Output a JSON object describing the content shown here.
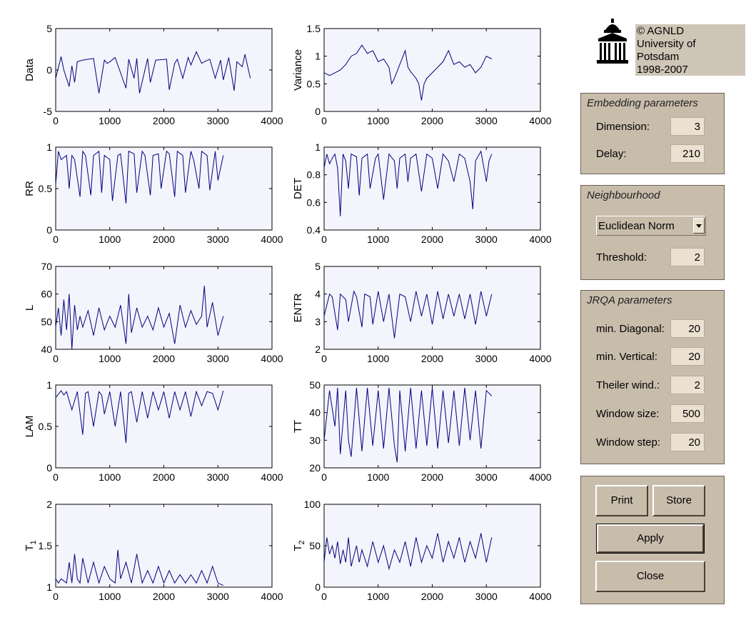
{
  "copyright": {
    "lines": [
      "© AGNLD",
      "University of",
      "Potsdam",
      "1998-2007"
    ]
  },
  "embedding": {
    "title": "Embedding parameters",
    "dimension_label": "Dimension:",
    "dimension_value": "3",
    "delay_label": "Delay:",
    "delay_value": "210"
  },
  "neighbourhood": {
    "title": "Neighbourhood",
    "norm_selected": "Euclidean Norm",
    "threshold_label": "Threshold:",
    "threshold_value": "2"
  },
  "jrqa": {
    "title": "JRQA parameters",
    "min_diagonal_label": "min. Diagonal:",
    "min_diagonal_value": "20",
    "min_vertical_label": "min. Vertical:",
    "min_vertical_value": "20",
    "theiler_label": "Theiler wind.:",
    "theiler_value": "2",
    "window_size_label": "Window size:",
    "window_size_value": "500",
    "window_step_label": "Window step:",
    "window_step_value": "20"
  },
  "buttons": {
    "print": "Print",
    "store": "Store",
    "apply": "Apply",
    "close": "Close"
  },
  "colors": {
    "plot_bg": "#f4f4fc",
    "line": "#000080",
    "panel_bg": "#c8bcab",
    "field_bg": "#ece1d1"
  },
  "chart_data": [
    {
      "type": "line",
      "ylabel": "Data",
      "xlim": [
        0,
        4000
      ],
      "ylim": [
        -5,
        5
      ],
      "xticks": [
        "0",
        "1000",
        "2000",
        "3000",
        "4000"
      ],
      "yticks": [
        "-5",
        "0",
        "5"
      ],
      "x": [
        0,
        100,
        150,
        250,
        300,
        350,
        400,
        500,
        700,
        800,
        900,
        950,
        1000,
        1100,
        1300,
        1350,
        1450,
        1500,
        1550,
        1700,
        1750,
        1850,
        2050,
        2100,
        2200,
        2250,
        2350,
        2450,
        2500,
        2600,
        2700,
        2750,
        2850,
        2950,
        3050,
        3100,
        3200,
        3300,
        3350,
        3450,
        3500,
        3600
      ],
      "y": [
        -1,
        1.6,
        0,
        -2,
        0.5,
        -1.5,
        1,
        1.2,
        1.4,
        -2.8,
        1.2,
        0.8,
        1,
        1.5,
        -2.2,
        1.3,
        -1,
        1.4,
        -2.8,
        1.4,
        -1.5,
        1.2,
        1.3,
        -2.4,
        0.8,
        1.3,
        -1,
        1.5,
        0.6,
        2.2,
        0.8,
        1,
        1.3,
        -1,
        1.2,
        -1.2,
        1.5,
        -2.5,
        1,
        0.4,
        1.9,
        -1
      ]
    },
    {
      "type": "line",
      "ylabel": "Variance",
      "xlim": [
        0,
        4000
      ],
      "ylim": [
        0,
        1.5
      ],
      "xticks": [
        "0",
        "1000",
        "2000",
        "3000",
        "4000"
      ],
      "yticks": [
        "0",
        "0.5",
        "1",
        "1.5"
      ],
      "x": [
        0,
        100,
        200,
        300,
        400,
        500,
        600,
        700,
        800,
        900,
        1000,
        1100,
        1200,
        1250,
        1300,
        1400,
        1500,
        1550,
        1600,
        1700,
        1750,
        1800,
        1850,
        1900,
        2000,
        2100,
        2200,
        2300,
        2400,
        2500,
        2600,
        2700,
        2800,
        2900,
        3000,
        3100
      ],
      "y": [
        0.7,
        0.65,
        0.7,
        0.75,
        0.85,
        1,
        1.05,
        1.2,
        1.05,
        1.1,
        0.9,
        0.95,
        0.8,
        0.5,
        0.6,
        0.85,
        1.1,
        0.8,
        0.72,
        0.6,
        0.5,
        0.2,
        0.5,
        0.6,
        0.7,
        0.8,
        0.9,
        1.1,
        0.85,
        0.9,
        0.8,
        0.85,
        0.7,
        0.8,
        1,
        0.95
      ]
    },
    {
      "type": "line",
      "ylabel": "RR",
      "xlim": [
        0,
        4000
      ],
      "ylim": [
        0,
        1
      ],
      "xticks": [
        "0",
        "1000",
        "2000",
        "3000",
        "4000"
      ],
      "yticks": [
        "0",
        "0.5",
        "1"
      ],
      "x": [
        0,
        50,
        100,
        200,
        250,
        300,
        350,
        450,
        500,
        550,
        650,
        700,
        800,
        850,
        900,
        1000,
        1050,
        1150,
        1200,
        1300,
        1350,
        1450,
        1500,
        1600,
        1650,
        1750,
        1800,
        1900,
        1950,
        2050,
        2100,
        2200,
        2250,
        2350,
        2400,
        2500,
        2550,
        2650,
        2700,
        2800,
        2850,
        2950,
        3000,
        3100
      ],
      "y": [
        0.55,
        0.95,
        0.85,
        0.9,
        0.5,
        0.9,
        0.85,
        0.4,
        0.95,
        0.9,
        0.42,
        0.9,
        0.95,
        0.45,
        0.9,
        0.85,
        0.35,
        0.9,
        0.92,
        0.32,
        0.95,
        0.92,
        0.45,
        0.95,
        0.9,
        0.42,
        0.9,
        0.92,
        0.5,
        0.95,
        0.92,
        0.4,
        0.95,
        0.9,
        0.45,
        0.95,
        0.85,
        0.5,
        0.95,
        0.9,
        0.48,
        0.95,
        0.6,
        0.9
      ]
    },
    {
      "type": "line",
      "ylabel": "DET",
      "xlim": [
        0,
        4000
      ],
      "ylim": [
        0.4,
        1
      ],
      "xticks": [
        "0",
        "1000",
        "2000",
        "3000",
        "4000"
      ],
      "yticks": [
        "0.4",
        "0.6",
        "0.8",
        "1"
      ],
      "x": [
        0,
        50,
        100,
        150,
        200,
        250,
        300,
        350,
        400,
        450,
        500,
        600,
        650,
        700,
        800,
        850,
        950,
        1000,
        1100,
        1200,
        1300,
        1350,
        1400,
        1500,
        1550,
        1600,
        1700,
        1800,
        1900,
        2000,
        2100,
        2200,
        2300,
        2400,
        2500,
        2600,
        2700,
        2750,
        2800,
        2900,
        3000,
        3050,
        3100
      ],
      "y": [
        0.85,
        0.95,
        0.88,
        0.92,
        0.95,
        0.85,
        0.5,
        0.95,
        0.9,
        0.7,
        0.95,
        0.93,
        0.65,
        0.92,
        0.95,
        0.7,
        0.92,
        0.95,
        0.62,
        0.95,
        0.9,
        0.7,
        0.92,
        0.95,
        0.75,
        0.92,
        0.95,
        0.68,
        0.95,
        0.92,
        0.7,
        0.95,
        0.9,
        0.75,
        0.95,
        0.92,
        0.75,
        0.55,
        0.9,
        0.97,
        0.75,
        0.9,
        0.95
      ]
    },
    {
      "type": "line",
      "ylabel": "L",
      "xlim": [
        0,
        4000
      ],
      "ylim": [
        40,
        70
      ],
      "xticks": [
        "0",
        "1000",
        "2000",
        "3000",
        "4000"
      ],
      "yticks": [
        "40",
        "50",
        "60",
        "70"
      ],
      "x": [
        0,
        50,
        100,
        150,
        200,
        250,
        300,
        350,
        400,
        450,
        500,
        600,
        700,
        800,
        900,
        1000,
        1100,
        1200,
        1300,
        1350,
        1400,
        1500,
        1600,
        1700,
        1800,
        1900,
        2000,
        2100,
        2200,
        2300,
        2400,
        2500,
        2600,
        2700,
        2750,
        2800,
        2900,
        3000,
        3100
      ],
      "y": [
        48,
        55,
        45,
        58,
        47,
        60,
        40,
        56,
        47,
        52,
        48,
        54,
        45,
        55,
        47,
        52,
        48,
        56,
        42,
        60,
        46,
        55,
        48,
        52,
        47,
        55,
        48,
        53,
        42,
        56,
        48,
        54,
        49,
        52,
        63,
        48,
        57,
        45,
        52
      ]
    },
    {
      "type": "line",
      "ylabel": "ENTR",
      "xlim": [
        0,
        4000
      ],
      "ylim": [
        2,
        5
      ],
      "xticks": [
        "0",
        "1000",
        "2000",
        "3000",
        "4000"
      ],
      "yticks": [
        "2",
        "3",
        "4",
        "5"
      ],
      "x": [
        0,
        100,
        150,
        250,
        300,
        400,
        450,
        550,
        600,
        700,
        750,
        850,
        900,
        1000,
        1100,
        1200,
        1300,
        1400,
        1500,
        1600,
        1700,
        1800,
        1900,
        2000,
        2100,
        2200,
        2300,
        2400,
        2500,
        2600,
        2700,
        2800,
        2900,
        3000,
        3100
      ],
      "y": [
        3.2,
        4,
        3.9,
        2.7,
        4,
        3.8,
        3,
        4.1,
        3.9,
        2.8,
        4,
        3.9,
        2.9,
        4.1,
        3,
        4,
        2.4,
        4,
        3.9,
        3,
        4.1,
        3.2,
        4,
        2.9,
        4.1,
        3.1,
        4,
        3.2,
        4,
        3.1,
        4,
        2.9,
        4.1,
        3.2,
        4
      ]
    },
    {
      "type": "line",
      "ylabel": "LAM",
      "xlim": [
        0,
        4000
      ],
      "ylim": [
        0,
        1
      ],
      "xticks": [
        "0",
        "1000",
        "2000",
        "3000",
        "4000"
      ],
      "yticks": [
        "0",
        "0.5",
        "1"
      ],
      "x": [
        0,
        100,
        150,
        200,
        300,
        400,
        500,
        550,
        600,
        700,
        800,
        850,
        900,
        1000,
        1100,
        1200,
        1300,
        1350,
        1400,
        1500,
        1600,
        1700,
        1800,
        1900,
        2000,
        2100,
        2200,
        2300,
        2400,
        2500,
        2600,
        2700,
        2800,
        2900,
        3000,
        3100
      ],
      "y": [
        0.85,
        0.93,
        0.88,
        0.92,
        0.7,
        0.92,
        0.4,
        0.9,
        0.92,
        0.5,
        0.92,
        0.88,
        0.65,
        0.92,
        0.5,
        0.92,
        0.3,
        0.9,
        0.92,
        0.55,
        0.92,
        0.6,
        0.92,
        0.7,
        0.92,
        0.6,
        0.92,
        0.7,
        0.92,
        0.62,
        0.92,
        0.75,
        0.92,
        0.9,
        0.7,
        0.93
      ]
    },
    {
      "type": "line",
      "ylabel": "TT",
      "xlim": [
        0,
        4000
      ],
      "ylim": [
        20,
        50
      ],
      "xticks": [
        "0",
        "1000",
        "2000",
        "3000",
        "4000"
      ],
      "yticks": [
        "20",
        "30",
        "40",
        "50"
      ],
      "x": [
        0,
        100,
        200,
        250,
        300,
        400,
        450,
        500,
        600,
        700,
        800,
        900,
        1000,
        1100,
        1200,
        1300,
        1350,
        1400,
        1500,
        1600,
        1700,
        1800,
        1900,
        2000,
        2100,
        2200,
        2300,
        2400,
        2500,
        2600,
        2700,
        2800,
        2900,
        3000,
        3100
      ],
      "y": [
        30,
        48,
        35,
        49,
        25,
        48,
        30,
        24,
        49,
        26,
        49,
        28,
        48,
        27,
        49,
        28,
        22,
        48,
        26,
        49,
        27,
        48,
        28,
        49,
        27,
        48,
        29,
        48,
        28,
        49,
        30,
        48,
        27,
        48,
        46
      ]
    },
    {
      "type": "line",
      "ylabel": "T1",
      "xlim": [
        0,
        4000
      ],
      "ylim": [
        1,
        2
      ],
      "xticks": [
        "0",
        "1000",
        "2000",
        "3000",
        "4000"
      ],
      "yticks": [
        "1",
        "1.5",
        "2"
      ],
      "x": [
        0,
        50,
        100,
        200,
        250,
        300,
        350,
        400,
        450,
        500,
        600,
        700,
        800,
        900,
        1000,
        1100,
        1150,
        1200,
        1300,
        1400,
        1500,
        1600,
        1700,
        1800,
        1900,
        2000,
        2100,
        2200,
        2300,
        2400,
        2500,
        2600,
        2700,
        2800,
        2900,
        3000,
        3100
      ],
      "y": [
        1.1,
        1.05,
        1.1,
        1.05,
        1.3,
        1.05,
        1.4,
        1.1,
        1.05,
        1.35,
        1.05,
        1.3,
        1.05,
        1.25,
        1.1,
        1.05,
        1.45,
        1.1,
        1.3,
        1.05,
        1.4,
        1.05,
        1.2,
        1.05,
        1.25,
        1.05,
        1.2,
        1.05,
        1.15,
        1.05,
        1.15,
        1.05,
        1.2,
        1.05,
        1.25,
        1.05,
        1.02
      ]
    },
    {
      "type": "line",
      "ylabel": "T2",
      "xlim": [
        0,
        4000
      ],
      "ylim": [
        0,
        100
      ],
      "xticks": [
        "0",
        "1000",
        "2000",
        "3000",
        "4000"
      ],
      "yticks": [
        "0",
        "50",
        "100"
      ],
      "x": [
        0,
        50,
        100,
        150,
        200,
        250,
        300,
        350,
        400,
        450,
        500,
        600,
        650,
        700,
        800,
        900,
        1000,
        1100,
        1200,
        1300,
        1400,
        1500,
        1600,
        1700,
        1800,
        1900,
        2000,
        2100,
        2200,
        2300,
        2400,
        2500,
        2600,
        2700,
        2800,
        2900,
        3000,
        3100
      ],
      "y": [
        30,
        60,
        40,
        50,
        35,
        55,
        28,
        45,
        30,
        60,
        25,
        50,
        30,
        45,
        25,
        55,
        30,
        50,
        22,
        45,
        30,
        55,
        25,
        60,
        30,
        50,
        35,
        65,
        30,
        55,
        35,
        60,
        30,
        55,
        35,
        65,
        30,
        60
      ]
    }
  ]
}
